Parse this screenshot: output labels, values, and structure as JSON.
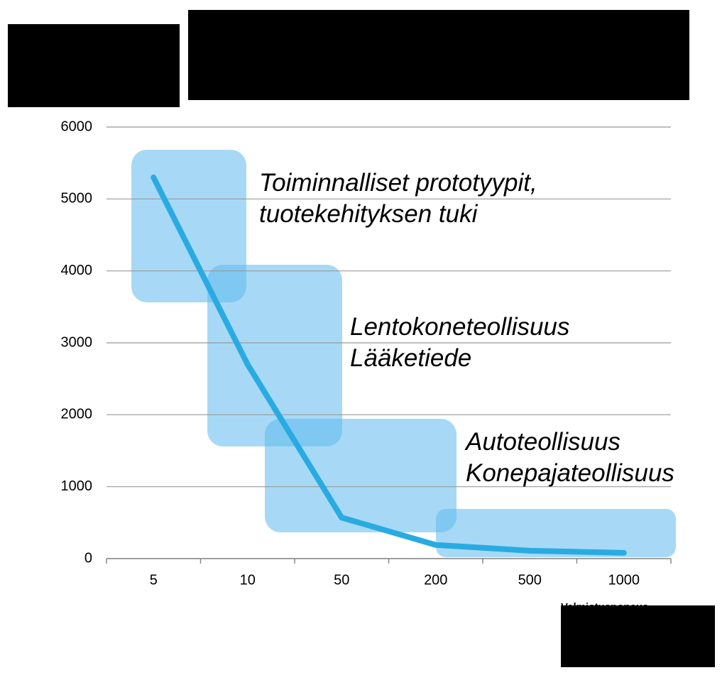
{
  "chart_data": {
    "type": "line",
    "x_label": "Valmistusnopeus",
    "categories": [
      "5",
      "10",
      "50",
      "200",
      "500",
      "1000"
    ],
    "series": [
      {
        "color": "#29abe2",
        "values": [
          5300,
          2700,
          570,
          190,
          110,
          80
        ]
      }
    ],
    "ylim": [
      0,
      6000
    ],
    "yticks": [
      0,
      1000,
      2000,
      3000,
      4000,
      5000,
      6000
    ],
    "grid": true,
    "annotations": [
      [
        "Toiminnalliset prototyypit,",
        "tuotekehityksen tuki"
      ],
      [
        "Lentokoneteollisuus",
        "Lääketiede"
      ],
      [
        "Autoteollisuus",
        "Konepajateollisuus"
      ]
    ]
  }
}
